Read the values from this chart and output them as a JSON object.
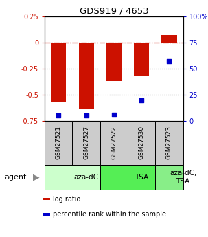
{
  "title": "GDS919 / 4653",
  "samples": [
    "GSM27521",
    "GSM27527",
    "GSM27522",
    "GSM27530",
    "GSM27523"
  ],
  "log_ratios": [
    -0.57,
    -0.63,
    -0.37,
    -0.32,
    0.07
  ],
  "percentile_ranks": [
    5,
    5,
    6,
    20,
    57
  ],
  "bar_color": "#cc1100",
  "dot_color": "#0000cc",
  "ylim_left": [
    -0.75,
    0.25
  ],
  "ylim_right": [
    0,
    100
  ],
  "yticks_left": [
    0.25,
    0,
    -0.25,
    -0.5,
    -0.75
  ],
  "ytick_labels_left": [
    "0.25",
    "0",
    "-0.25",
    "-0.5",
    "-0.75"
  ],
  "yticks_right": [
    100,
    75,
    50,
    25,
    0
  ],
  "ytick_labels_right": [
    "100%",
    "75",
    "50",
    "25",
    "0"
  ],
  "hline_y": 0,
  "dotted_lines": [
    -0.25,
    -0.5
  ],
  "agent_groups": [
    {
      "label": "aza-dC",
      "span": [
        0,
        2
      ],
      "color": "#ccffcc"
    },
    {
      "label": "TSA",
      "span": [
        2,
        4
      ],
      "color": "#55ee55"
    },
    {
      "label": "aza-dC,\nTSA",
      "span": [
        4,
        5
      ],
      "color": "#88ee88"
    }
  ],
  "legend_items": [
    {
      "color": "#cc1100",
      "label": "log ratio"
    },
    {
      "color": "#0000cc",
      "label": "percentile rank within the sample"
    }
  ],
  "sample_box_color": "#cccccc",
  "bar_width": 0.55
}
